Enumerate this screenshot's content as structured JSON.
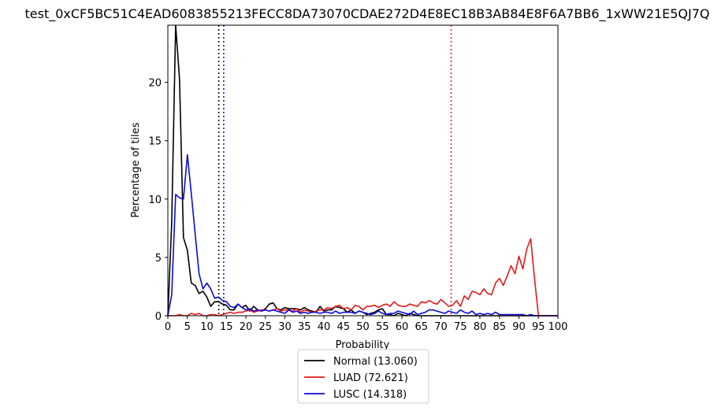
{
  "chart_data": {
    "type": "line",
    "title": "test_0xCF5BC51C4EAD6083855213FECC8DA73070CDAE272D4E8EC18B3AB84E8F6A7BB6_1xWW21E5QJ7Q",
    "xlabel": "Probability",
    "ylabel": "Percentage of tiles",
    "xlim": [
      0,
      100
    ],
    "ylim": [
      0,
      24.9
    ],
    "xticks": [
      "0",
      "5",
      "10",
      "15",
      "20",
      "25",
      "30",
      "35",
      "40",
      "45",
      "50",
      "55",
      "60",
      "65",
      "70",
      "75",
      "80",
      "85",
      "90",
      "95",
      "100"
    ],
    "yticks": [
      "0",
      "5",
      "10",
      "15",
      "20"
    ],
    "x": [
      0,
      1,
      2,
      3,
      4,
      5,
      6,
      7,
      8,
      9,
      10,
      11,
      12,
      13,
      14,
      15,
      16,
      17,
      18,
      19,
      20,
      21,
      22,
      23,
      24,
      25,
      26,
      27,
      28,
      29,
      30,
      31,
      32,
      33,
      34,
      35,
      36,
      37,
      38,
      39,
      40,
      41,
      42,
      43,
      44,
      45,
      46,
      47,
      48,
      49,
      50,
      51,
      52,
      53,
      54,
      55,
      56,
      57,
      58,
      59,
      60,
      61,
      62,
      63,
      64,
      65,
      66,
      67,
      68,
      69,
      70,
      71,
      72,
      73,
      74,
      75,
      76,
      77,
      78,
      79,
      80,
      81,
      82,
      83,
      84,
      85,
      86,
      87,
      88,
      89,
      90,
      91,
      92,
      93,
      94,
      95,
      96,
      97,
      98,
      99,
      100
    ],
    "series": [
      {
        "name": "Normal (13.060)",
        "color": "#000000",
        "values": [
          0,
          8,
          24.9,
          20.3,
          6.7,
          5.6,
          2.8,
          2.6,
          1.9,
          2.1,
          1.6,
          0.8,
          1.2,
          1.2,
          1.0,
          0.9,
          0.5,
          0.5,
          1.0,
          0.7,
          0.9,
          0.4,
          0.8,
          0.5,
          0.4,
          0.6,
          1.0,
          1.1,
          0.6,
          0.5,
          0.7,
          0.6,
          0.6,
          0.6,
          0.5,
          0.7,
          0.5,
          0.4,
          0.3,
          0.8,
          0.4,
          0.5,
          0.5,
          0.8,
          0.7,
          0.6,
          0.3,
          0.5,
          0.2,
          0.4,
          0.3,
          0.1,
          0.2,
          0.3,
          0.5,
          0.6,
          0.1,
          0.1,
          0.0,
          0.2,
          0.1,
          0.0,
          0.2,
          0.1,
          0.0,
          0.0,
          0.0,
          0.0,
          0.0,
          0.0,
          0.0,
          0.0,
          0.0,
          0.0,
          0.0,
          0.0,
          0.0,
          0.0,
          0.0,
          0.0,
          0.0,
          0.0,
          0.0,
          0.0,
          0.0,
          0.0,
          0.0,
          0.0,
          0.0,
          0.0,
          0.0,
          0.0,
          0.0,
          0.0,
          0.0,
          0.0,
          0.0,
          0.0,
          0.0,
          0.0,
          0.0
        ]
      },
      {
        "name": "LUAD (72.621)",
        "color": "#e31a1c",
        "values": [
          0,
          0,
          0,
          0.1,
          0,
          0,
          0.2,
          0.1,
          0.2,
          0,
          0,
          0.1,
          0.1,
          0,
          0.1,
          0.2,
          0.3,
          0.2,
          0.3,
          0.3,
          0.4,
          0.5,
          0.3,
          0.4,
          0.5,
          0.5,
          0.4,
          0.5,
          0.6,
          0.4,
          0.5,
          0.5,
          0.4,
          0.6,
          0.3,
          0.5,
          0.4,
          0.3,
          0.4,
          0.5,
          0.5,
          0.7,
          0.6,
          0.8,
          0.9,
          0.6,
          0.7,
          0.5,
          0.9,
          0.8,
          0.5,
          0.8,
          0.8,
          0.9,
          0.7,
          0.9,
          1.0,
          0.8,
          1.2,
          0.9,
          0.8,
          0.8,
          1.0,
          0.9,
          0.8,
          1.2,
          1.1,
          1.3,
          1.1,
          1.0,
          1.4,
          1.1,
          0.8,
          0.9,
          1.3,
          0.8,
          1.7,
          1.4,
          2.1,
          2.0,
          1.8,
          2.3,
          1.9,
          1.8,
          2.8,
          3.2,
          2.6,
          3.4,
          4.3,
          3.6,
          5.1,
          4.0,
          5.7,
          6.6,
          3.2,
          0,
          0,
          0,
          0,
          0,
          0
        ]
      },
      {
        "name": "LUSC (14.318)",
        "color": "#0a0adb",
        "values": [
          0,
          1.8,
          10.4,
          10.1,
          10.0,
          13.8,
          10.5,
          7.0,
          3.6,
          2.3,
          2.8,
          2.3,
          1.5,
          1.6,
          1.3,
          1.2,
          0.8,
          0.7,
          1.0,
          0.7,
          0.5,
          0.6,
          0.4,
          0.5,
          0.4,
          0.5,
          0.4,
          0.5,
          0.4,
          0.3,
          0.2,
          0.5,
          0.3,
          0.4,
          0.2,
          0.3,
          0.2,
          0.3,
          0.3,
          0.2,
          0.3,
          0.3,
          0.2,
          0.4,
          0.2,
          0.3,
          0.3,
          0.3,
          0.2,
          0.4,
          0.3,
          0.2,
          0.1,
          0.2,
          0.4,
          0.2,
          0.1,
          0.2,
          0.2,
          0.4,
          0.3,
          0.2,
          0.1,
          0.4,
          0.1,
          0.2,
          0.3,
          0.5,
          0.5,
          0.4,
          0.3,
          0.2,
          0.4,
          0.3,
          0.2,
          0.5,
          0.3,
          0.2,
          0.4,
          0.1,
          0.2,
          0.1,
          0.2,
          0.1,
          0.3,
          0.1,
          0.1,
          0.1,
          0.1,
          0.1,
          0.1,
          0.1,
          0.0,
          0.1,
          0.0,
          0.0,
          0.0,
          0.0,
          0.0,
          0.0,
          0.0
        ]
      }
    ],
    "vlines": [
      {
        "x": 13.06,
        "color": "#000000"
      },
      {
        "x": 72.621,
        "color": "#e31a1c"
      },
      {
        "x": 14.318,
        "color": "#0a0adb"
      }
    ],
    "legend_position": "bottom-center",
    "grid": false
  }
}
